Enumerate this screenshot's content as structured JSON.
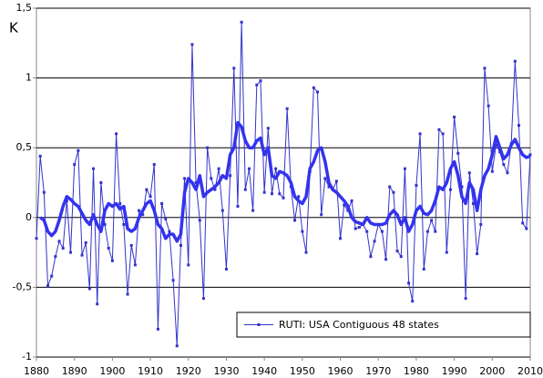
{
  "chart_data": {
    "type": "line",
    "y_label": "K",
    "x": [
      1880,
      1881,
      1882,
      1883,
      1884,
      1885,
      1886,
      1887,
      1888,
      1889,
      1890,
      1891,
      1892,
      1893,
      1894,
      1895,
      1896,
      1897,
      1898,
      1899,
      1900,
      1901,
      1902,
      1903,
      1904,
      1905,
      1906,
      1907,
      1908,
      1909,
      1910,
      1911,
      1912,
      1913,
      1914,
      1915,
      1916,
      1917,
      1918,
      1919,
      1920,
      1921,
      1922,
      1923,
      1924,
      1925,
      1926,
      1927,
      1928,
      1929,
      1930,
      1931,
      1932,
      1933,
      1934,
      1935,
      1936,
      1937,
      1938,
      1939,
      1940,
      1941,
      1942,
      1943,
      1944,
      1945,
      1946,
      1947,
      1948,
      1949,
      1950,
      1951,
      1952,
      1953,
      1954,
      1955,
      1956,
      1957,
      1958,
      1959,
      1960,
      1961,
      1962,
      1963,
      1964,
      1965,
      1966,
      1967,
      1968,
      1969,
      1970,
      1971,
      1972,
      1973,
      1974,
      1975,
      1976,
      1977,
      1978,
      1979,
      1980,
      1981,
      1982,
      1983,
      1984,
      1985,
      1986,
      1987,
      1988,
      1989,
      1990,
      1991,
      1992,
      1993,
      1994,
      1995,
      1996,
      1997,
      1998,
      1999,
      2000,
      2001,
      2002,
      2003,
      2004,
      2005,
      2006,
      2007,
      2008,
      2009,
      2010
    ],
    "series": [
      {
        "name": "RUTI: USA Contiguous 48 states",
        "color": "#3333cc",
        "markers": true,
        "values": [
          -0.15,
          0.44,
          0.18,
          -0.49,
          -0.42,
          -0.28,
          -0.17,
          -0.22,
          0.12,
          -0.25,
          0.38,
          0.48,
          -0.27,
          -0.18,
          -0.51,
          0.35,
          -0.62,
          0.25,
          -0.05,
          -0.22,
          -0.31,
          0.6,
          0.1,
          -0.05,
          -0.55,
          -0.2,
          -0.34,
          0.05,
          0.02,
          0.2,
          0.15,
          0.38,
          -0.8,
          0.1,
          -0.01,
          -0.1,
          -0.45,
          -0.92,
          -0.2,
          0.28,
          -0.34,
          1.24,
          0.25,
          -0.02,
          -0.58,
          0.5,
          0.28,
          0.2,
          0.35,
          0.05,
          -0.37,
          0.3,
          1.07,
          0.08,
          1.4,
          0.2,
          0.35,
          0.05,
          0.95,
          0.98,
          0.18,
          0.64,
          0.17,
          0.35,
          0.17,
          0.14,
          0.78,
          0.22,
          -0.02,
          0.15,
          -0.1,
          -0.25,
          0.33,
          0.93,
          0.9,
          0.02,
          0.28,
          0.22,
          0.2,
          0.26,
          -0.15,
          0.09,
          0.05,
          0.12,
          -0.08,
          -0.07,
          -0.05,
          -0.1,
          -0.28,
          -0.17,
          -0.05,
          -0.1,
          -0.3,
          0.22,
          0.18,
          -0.24,
          -0.28,
          0.35,
          -0.47,
          -0.6,
          0.23,
          0.6,
          -0.37,
          -0.1,
          -0.02,
          -0.1,
          0.63,
          0.6,
          -0.25,
          0.2,
          0.72,
          0.46,
          0.22,
          -0.58,
          0.32,
          0.1,
          -0.26,
          -0.05,
          1.07,
          0.8,
          0.33,
          0.52,
          0.47,
          0.38,
          0.32,
          0.53,
          1.12,
          0.66,
          -0.04,
          -0.08,
          0.45
        ]
      },
      {
        "color": "#3333ee",
        "markers": false,
        "values": [
          null,
          0.0,
          -0.02,
          -0.1,
          -0.13,
          -0.1,
          -0.02,
          0.08,
          0.15,
          0.13,
          0.1,
          0.08,
          0.03,
          -0.02,
          -0.05,
          0.02,
          -0.05,
          -0.1,
          0.05,
          0.1,
          0.08,
          0.1,
          0.06,
          0.08,
          -0.08,
          -0.1,
          -0.08,
          0.0,
          0.05,
          0.1,
          0.12,
          0.05,
          -0.05,
          -0.08,
          -0.15,
          -0.12,
          -0.12,
          -0.17,
          -0.12,
          0.18,
          0.28,
          0.25,
          0.2,
          0.3,
          0.15,
          0.18,
          0.2,
          0.22,
          0.25,
          0.3,
          0.28,
          0.45,
          0.5,
          0.68,
          0.65,
          0.55,
          0.5,
          0.5,
          0.55,
          0.57,
          0.45,
          0.5,
          0.3,
          0.28,
          0.33,
          0.32,
          0.3,
          0.25,
          0.15,
          0.12,
          0.1,
          0.15,
          0.35,
          0.4,
          0.48,
          0.5,
          0.4,
          0.25,
          0.2,
          0.18,
          0.15,
          0.12,
          0.08,
          0.0,
          -0.03,
          -0.04,
          -0.05,
          0.0,
          -0.04,
          -0.05,
          -0.05,
          -0.05,
          -0.04,
          0.02,
          0.05,
          0.02,
          -0.05,
          0.0,
          -0.1,
          -0.05,
          0.05,
          0.08,
          0.03,
          0.02,
          0.05,
          0.12,
          0.22,
          0.2,
          0.25,
          0.35,
          0.4,
          0.3,
          0.15,
          0.1,
          0.25,
          0.2,
          0.05,
          0.2,
          0.3,
          0.35,
          0.45,
          0.58,
          0.5,
          0.42,
          0.45,
          0.52,
          0.56,
          0.5,
          0.45,
          0.43,
          0.44
        ]
      }
    ],
    "xlim": [
      1880,
      2010
    ],
    "xticks": [
      1880,
      1890,
      1900,
      1910,
      1920,
      1930,
      1940,
      1950,
      1960,
      1970,
      1980,
      1990,
      2000,
      2010
    ],
    "ylim": [
      -1,
      1.5
    ],
    "yticks": [
      -1,
      {
        "value": -0.5,
        "label": "-0,5"
      },
      0,
      {
        "value": 0.5,
        "label": "0,5"
      },
      1,
      {
        "value": 1.5,
        "label": "1,5"
      }
    ],
    "grid": true
  }
}
